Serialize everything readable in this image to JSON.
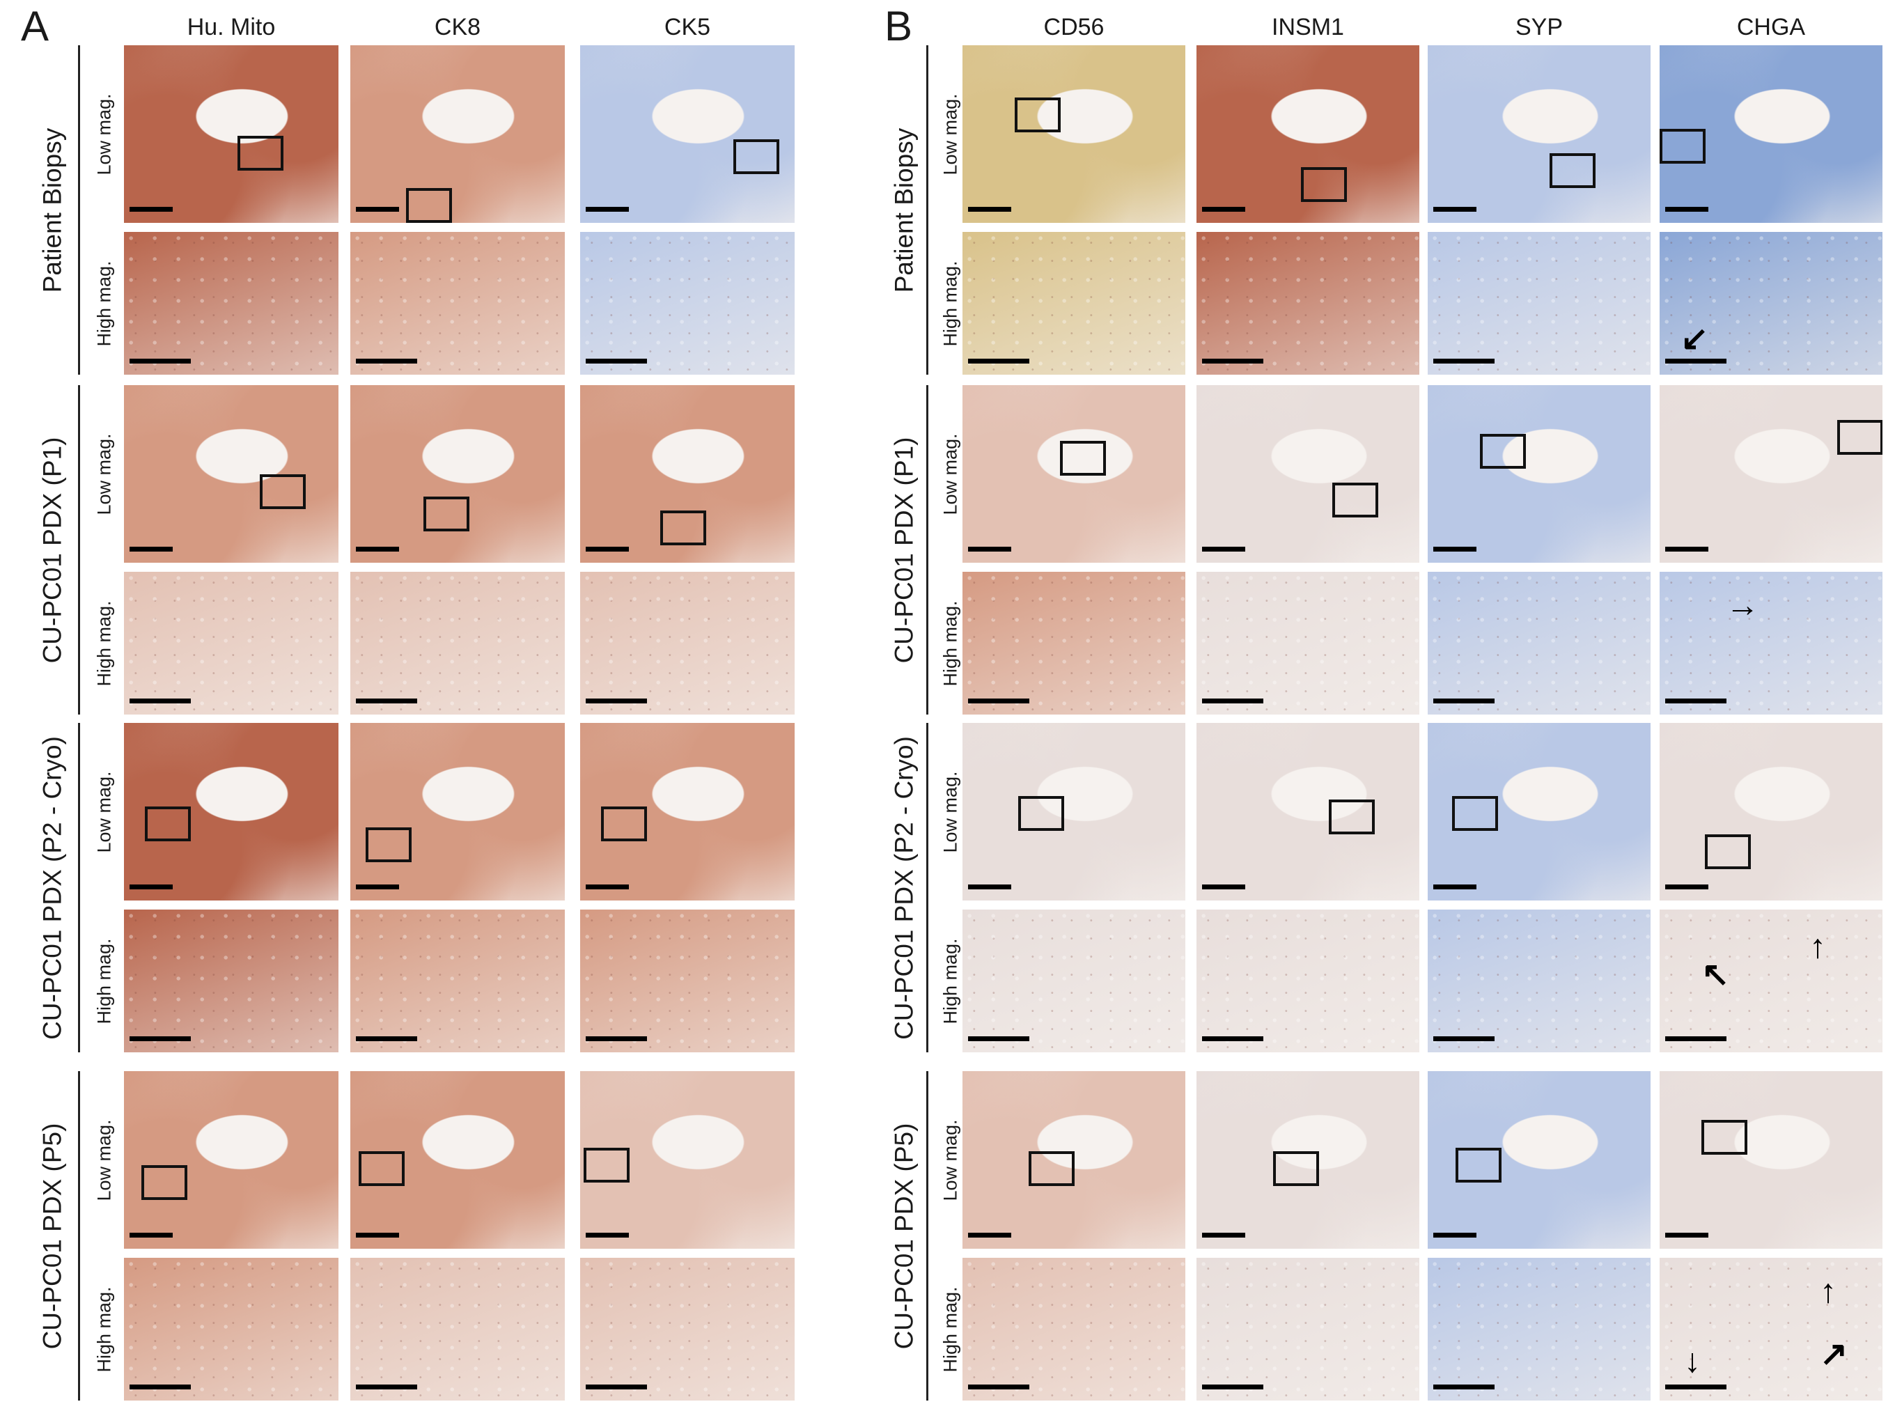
{
  "panels": [
    {
      "letter": "A",
      "columns": [
        "Hu. Mito",
        "CK8",
        "CK5"
      ],
      "groups": [
        "Patient Biopsy",
        "CU-PC01 PDX (P1)",
        "CU-PC01 PDX (P2 - Cryo)",
        "CU-PC01 PDX (P5)"
      ],
      "rows": [
        "Low  mag.",
        "High mag."
      ]
    },
    {
      "letter": "B",
      "columns": [
        "CD56",
        "INSM1",
        "SYP",
        "CHGA"
      ],
      "groups": [
        "Patient Biopsy",
        "CU-PC01 PDX (P1)",
        "CU-PC01 PDX (P2 - Cryo)",
        "CU-PC01 PDX (P5)"
      ],
      "rows": [
        "Low  mag.",
        "High mag."
      ]
    }
  ],
  "stain_colors": {
    "brown_strong": "#b8654c",
    "brown_medium": "#d59a82",
    "brown_light": "#e3c1b3",
    "golden": "#d9c28a",
    "blue": "#8aa6d6",
    "blue_light": "#b9c8e6",
    "pale": "#e8dedb",
    "background": "#f6f2ef"
  }
}
